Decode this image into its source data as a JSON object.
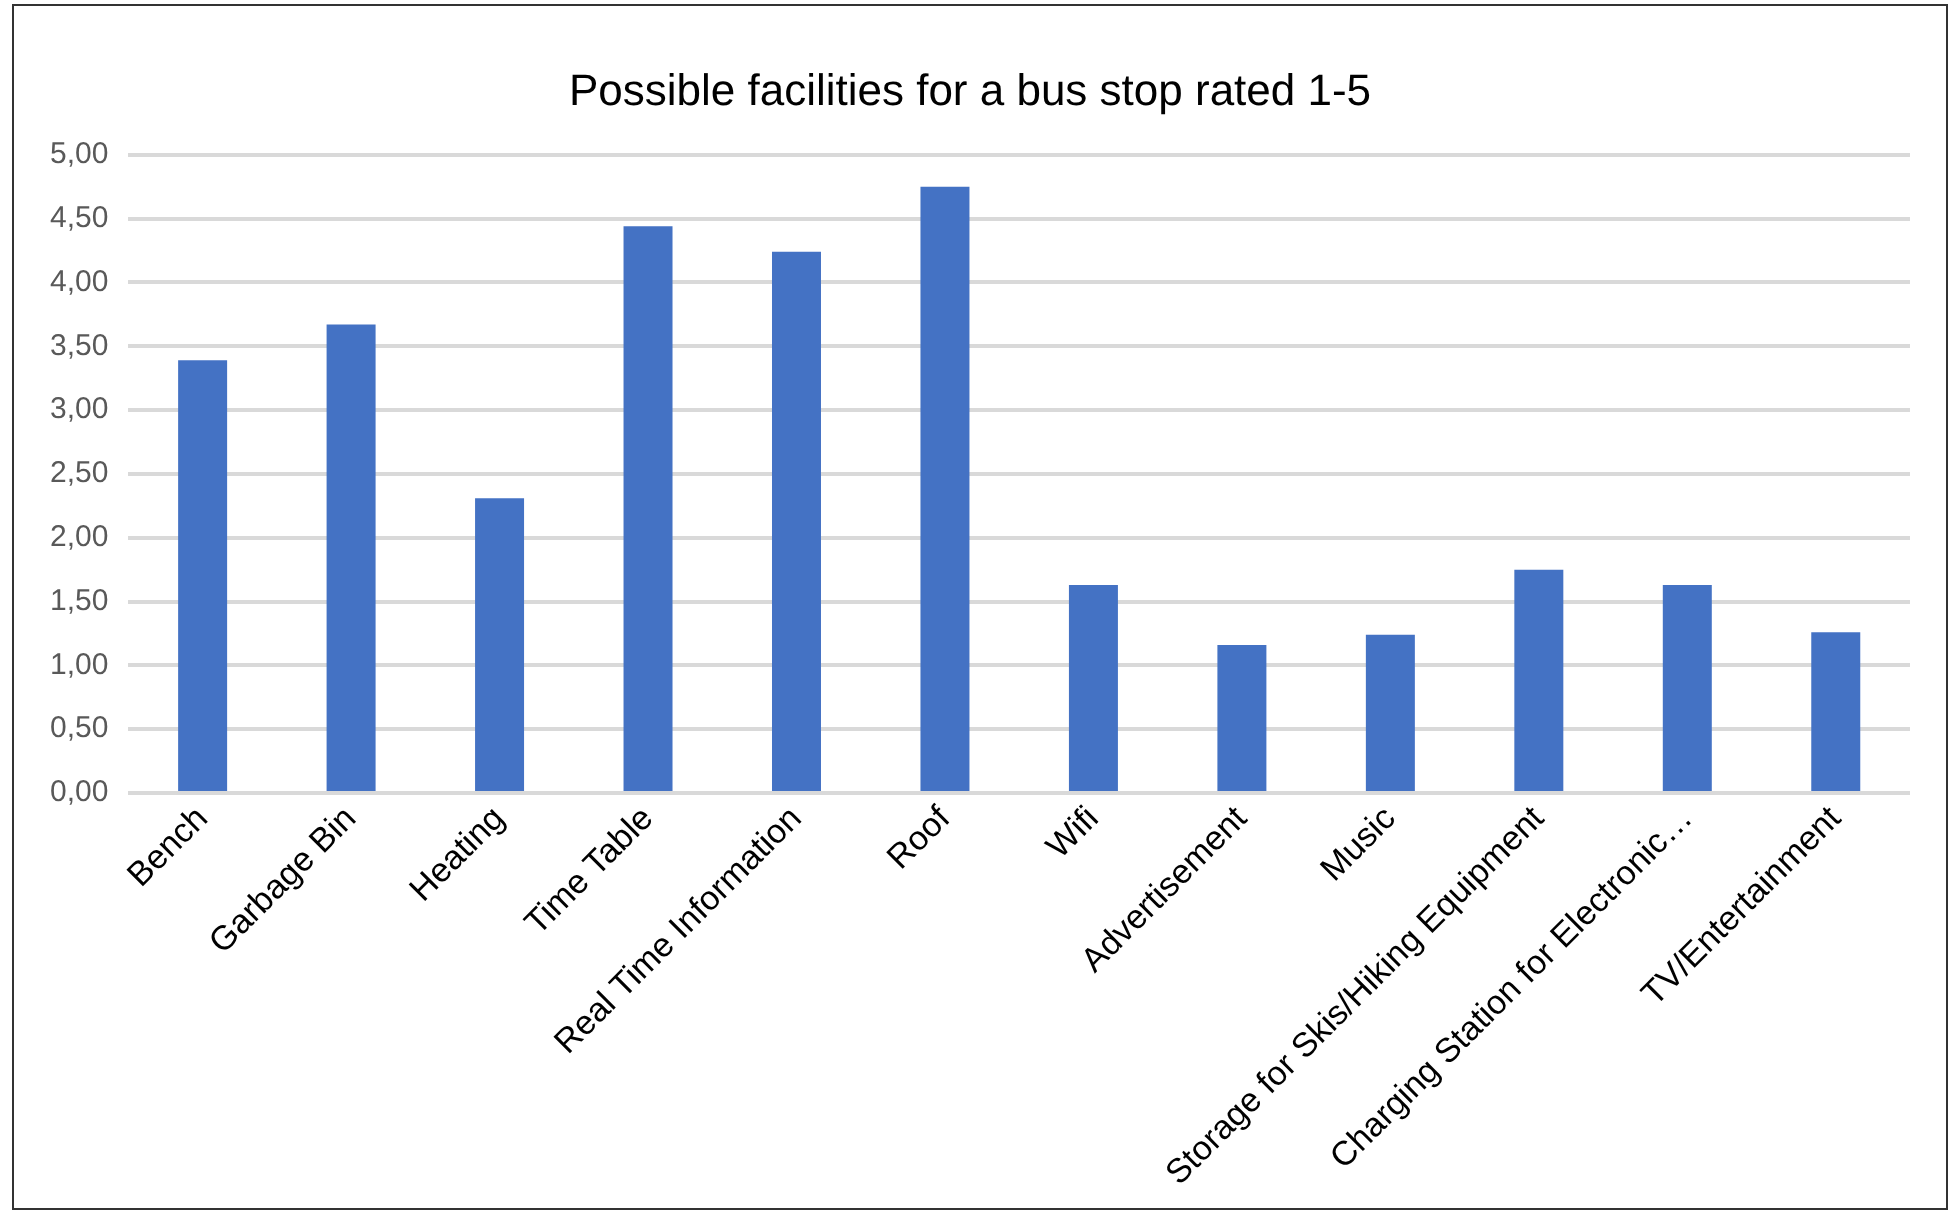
{
  "chart_data": {
    "type": "bar",
    "title": "Possible facilities for a bus stop rated 1-5",
    "categories": [
      "Bench",
      "Garbage Bin",
      "Heating",
      "Time Table",
      "Real Time Information",
      "Roof",
      "Wifi",
      "Advertisement",
      "Music",
      "Storage for Skis/Hiking Equipment",
      "Charging Station for Electronic…",
      "TV/Entertainment"
    ],
    "values": [
      3.39,
      3.67,
      2.31,
      4.44,
      4.24,
      4.75,
      1.63,
      1.16,
      1.24,
      1.75,
      1.63,
      1.26
    ],
    "color": "#4472c4",
    "ylim": [
      0,
      5
    ],
    "yticks": [
      {
        "value": 0,
        "label": "0,00"
      },
      {
        "value": 0.5,
        "label": "0,50"
      },
      {
        "value": 1,
        "label": "1,00"
      },
      {
        "value": 1.5,
        "label": "1,50"
      },
      {
        "value": 2,
        "label": "2,00"
      },
      {
        "value": 2.5,
        "label": "2,50"
      },
      {
        "value": 3,
        "label": "3,00"
      },
      {
        "value": 3.5,
        "label": "3,50"
      },
      {
        "value": 4,
        "label": "4,00"
      },
      {
        "value": 4.5,
        "label": "4,50"
      },
      {
        "value": 5,
        "label": "5,00"
      }
    ],
    "grid": "y"
  }
}
